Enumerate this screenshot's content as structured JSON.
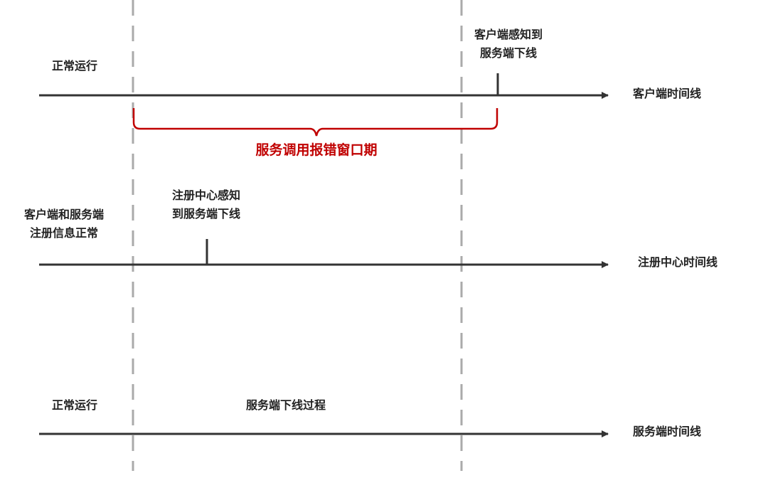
{
  "colors": {
    "line": "#333333",
    "dashed": "#aaaaaa",
    "window": "#c00000",
    "text": "#222222"
  },
  "client": {
    "left_label": "正常运行",
    "event_label_line1": "客户端感知到",
    "event_label_line2": "服务端下线",
    "timeline_label": "客户端时间线"
  },
  "window_label": "服务调用报错窗口期",
  "registry": {
    "left_label_line1": "客户端和服务端",
    "left_label_line2": "注册信息正常",
    "event_label_line1": "注册中心感知",
    "event_label_line2": "到服务端下线",
    "timeline_label": "注册中心时间线"
  },
  "server": {
    "left_label": "正常运行",
    "middle_label": "服务端下线过程",
    "timeline_label": "服务端时间线"
  }
}
